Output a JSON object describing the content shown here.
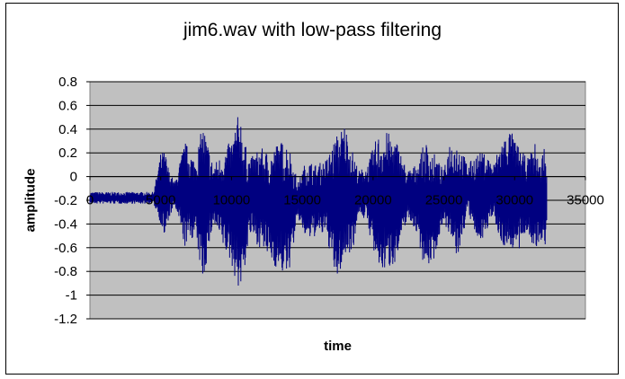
{
  "chart_data": {
    "type": "line",
    "title": "jim6.wav with low-pass filtering",
    "xlabel": "time",
    "ylabel": "amplitude",
    "xlim": [
      0,
      35000
    ],
    "ylim": [
      -1.2,
      0.8
    ],
    "x_ticks": [
      0,
      5000,
      10000,
      15000,
      20000,
      25000,
      30000,
      35000
    ],
    "y_ticks": [
      0.8,
      0.6,
      0.4,
      0.2,
      0,
      -0.2,
      -0.4,
      -0.6,
      -0.8,
      -1,
      -1.2
    ],
    "x_tick_labels": [
      "0",
      "5000",
      "10000",
      "15000",
      "20000",
      "25000",
      "30000",
      "35000"
    ],
    "y_tick_labels": [
      "0.8",
      "0.6",
      "0.4",
      "0.2",
      "0",
      "-0.2",
      "-0.4",
      "-0.6",
      "-0.8",
      "-1",
      "-1.2"
    ],
    "grid": true,
    "legend": "none",
    "plot_background": "#c0c0c0",
    "series": [
      {
        "color": "#000080",
        "data_range": [
          0,
          32300
        ],
        "envelope": {
          "x": [
            0,
            4500,
            5000,
            5300,
            5600,
            6000,
            6700,
            7400,
            8000,
            8700,
            9400,
            10000,
            10600,
            10900,
            11300,
            12000,
            12700,
            13300,
            14000,
            14700,
            15300,
            16000,
            16700,
            17400,
            18000,
            18600,
            19000,
            19600,
            20300,
            21000,
            21700,
            22400,
            23000,
            23700,
            24300,
            25000,
            25400,
            26000,
            26700,
            27300,
            28000,
            28500,
            29000,
            29700,
            30300,
            30900,
            31500,
            31800,
            32100,
            32300
          ],
          "max": [
            -0.13,
            -0.13,
            0.2,
            0.22,
            0.05,
            -0.05,
            0.3,
            0.15,
            0.45,
            0.1,
            0.2,
            0.32,
            0.58,
            0.3,
            0.15,
            0.25,
            0.2,
            0.3,
            0.3,
            -0.05,
            0.15,
            0.1,
            0.15,
            0.35,
            0.45,
            0.2,
            0.05,
            0.1,
            0.35,
            0.38,
            0.3,
            0.05,
            0.1,
            0.3,
            0.2,
            0.05,
            0.3,
            0.3,
            0.1,
            0.2,
            0.2,
            0.1,
            0.3,
            0.4,
            0.25,
            0.15,
            0.3,
            0.1,
            0.3,
            -0.05
          ],
          "min": [
            -0.23,
            -0.23,
            -0.4,
            -0.55,
            -0.35,
            -0.25,
            -0.6,
            -0.5,
            -0.9,
            -0.4,
            -0.6,
            -0.75,
            -1.0,
            -0.8,
            -0.5,
            -0.6,
            -0.7,
            -0.8,
            -0.85,
            -0.35,
            -0.55,
            -0.5,
            -0.5,
            -0.9,
            -0.7,
            -0.6,
            -0.3,
            -0.4,
            -0.8,
            -0.8,
            -0.7,
            -0.35,
            -0.45,
            -0.8,
            -0.7,
            -0.35,
            -0.55,
            -0.7,
            -0.3,
            -0.55,
            -0.5,
            -0.3,
            -0.6,
            -0.6,
            -0.65,
            -0.45,
            -0.7,
            -0.5,
            -0.7,
            -0.3
          ]
        }
      }
    ]
  }
}
